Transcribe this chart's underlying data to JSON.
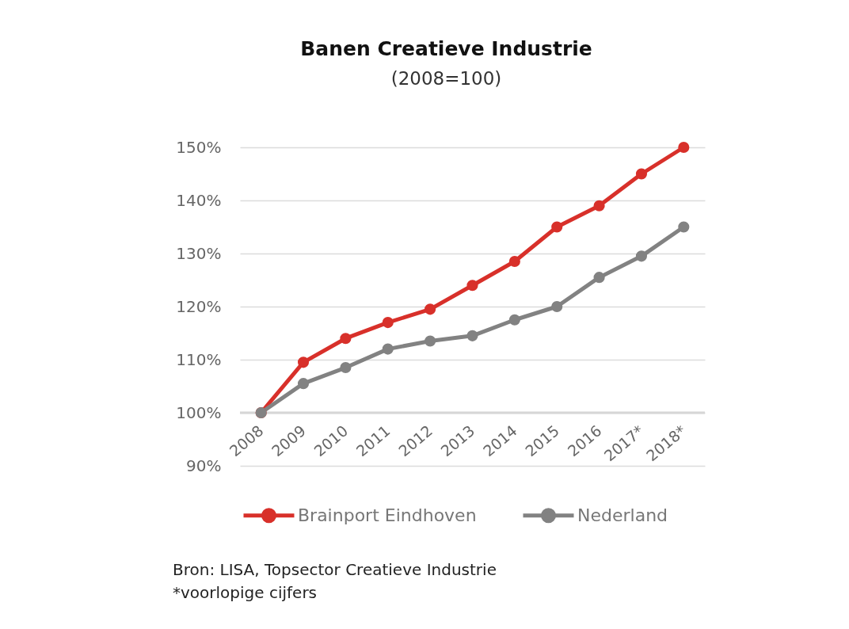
{
  "chart_data": {
    "type": "line",
    "title": "Banen Creatieve Industrie",
    "subtitle": "(2008=100)",
    "categories": [
      "2008",
      "2009",
      "2010",
      "2011",
      "2012",
      "2013",
      "2014",
      "2015",
      "2016",
      "2017*",
      "2018*"
    ],
    "series": [
      {
        "name": "Brainport Eindhoven",
        "color": "#d8302a",
        "values": [
          100,
          109.5,
          114,
          117,
          119.5,
          124,
          128.5,
          135,
          139,
          145,
          150
        ]
      },
      {
        "name": "Nederland",
        "color": "#828282",
        "values": [
          100,
          105.5,
          108.5,
          112,
          113.5,
          114.5,
          117.5,
          120,
          125.5,
          129.5,
          135
        ]
      }
    ],
    "ylim": [
      90,
      150
    ],
    "yticks": [
      {
        "value": 90,
        "label": "90%"
      },
      {
        "value": 100,
        "label": "100%"
      },
      {
        "value": 110,
        "label": "110%"
      },
      {
        "value": 120,
        "label": "120%"
      },
      {
        "value": 130,
        "label": "130%"
      },
      {
        "value": 140,
        "label": "140%"
      },
      {
        "value": 150,
        "label": "150%"
      }
    ],
    "ref_lines": [
      {
        "axis": "y",
        "value": 100,
        "color": "#d6d6d6"
      }
    ],
    "grid": "y",
    "legend": "bottom",
    "marker": "circle",
    "line_style": "solid",
    "annotations": [
      "Bron: LISA, Topsector Creatieve Industrie",
      "*voorlopige cijfers"
    ]
  }
}
